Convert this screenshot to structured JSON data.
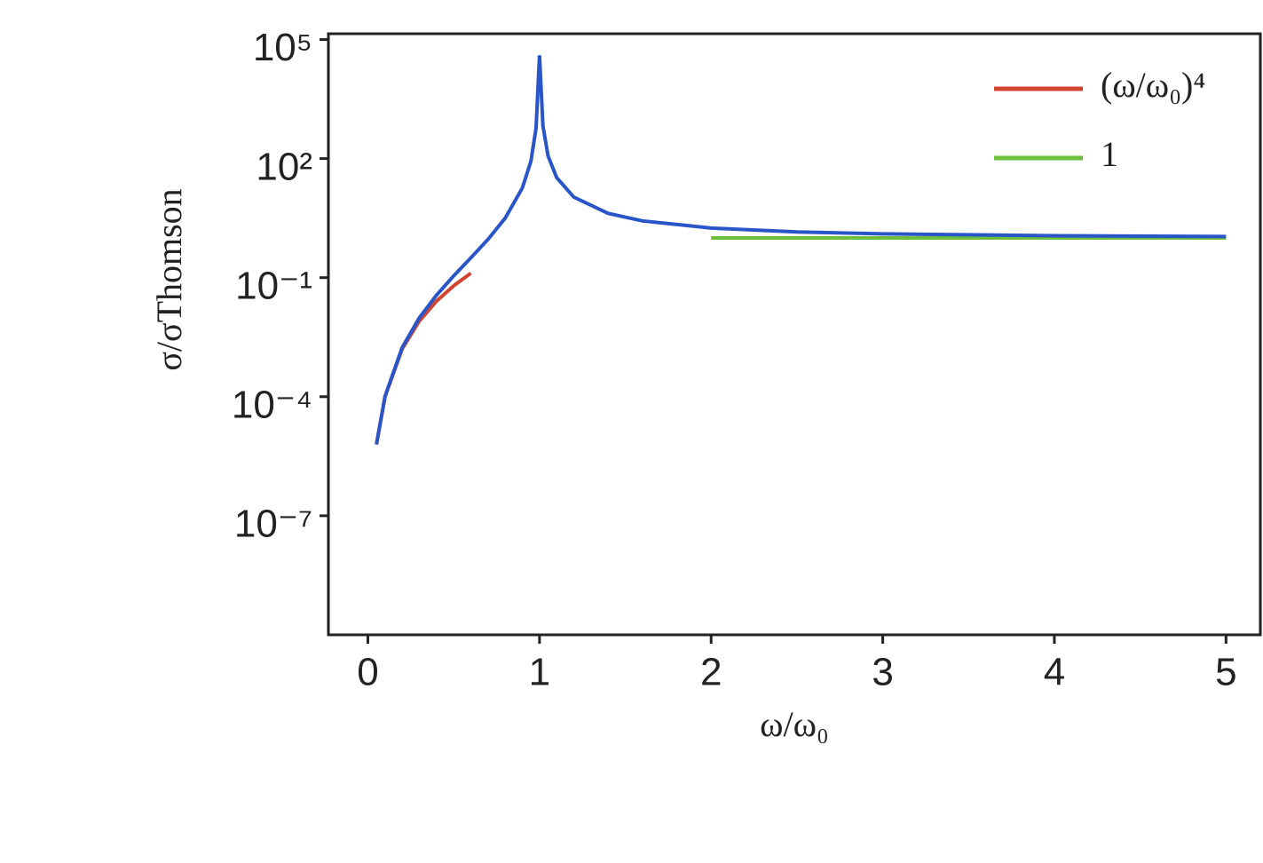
{
  "chart_data": {
    "type": "line",
    "xlabel": "ω/ω₀",
    "ylabel": "σ/σThomson",
    "xlim": [
      -0.23,
      5.2
    ],
    "xticks": [
      0,
      1,
      2,
      3,
      4,
      5
    ],
    "ylim": [
      1e-10,
      140000
    ],
    "log_y": true,
    "yticks": [
      {
        "value": 1e-07,
        "label": "10⁻⁷"
      },
      {
        "value": 0.0001,
        "label": "10⁻⁴"
      },
      {
        "value": 0.1,
        "label": "10⁻¹"
      },
      {
        "value": 100,
        "label": "10²"
      },
      {
        "value": 100000,
        "label": "10⁵"
      }
    ],
    "legend": "upper right",
    "series": [
      {
        "color": "#2a55c8",
        "x": [
          0.05,
          0.1,
          0.2,
          0.3,
          0.4,
          0.5,
          0.6,
          0.7,
          0.8,
          0.9,
          0.95,
          0.98,
          1.0,
          1.02,
          1.05,
          1.1,
          1.2,
          1.4,
          1.6,
          2,
          2.5,
          3,
          4,
          5
        ],
        "values": [
          6.28e-06,
          0.000102,
          0.00174,
          0.00978,
          0.0363,
          0.111,
          0.316,
          0.923,
          3.16,
          18.2,
          85.7,
          588,
          40000,
          663,
          116,
          33.2,
          10.7,
          4.17,
          2.69,
          1.78,
          1.42,
          1.27,
          1.14,
          1.09
        ]
      },
      {
        "name": "(ω/ω₀)⁴",
        "color": "#d0452f",
        "x": [
          0.05,
          0.1,
          0.2,
          0.3,
          0.4,
          0.5,
          0.6
        ],
        "values": [
          6.25e-06,
          0.0001,
          0.0016,
          0.0081,
          0.0256,
          0.0625,
          0.1296
        ]
      },
      {
        "name": "1",
        "color": "#6cbf3c",
        "x": [
          2,
          5
        ],
        "values": [
          1,
          1
        ]
      }
    ]
  }
}
